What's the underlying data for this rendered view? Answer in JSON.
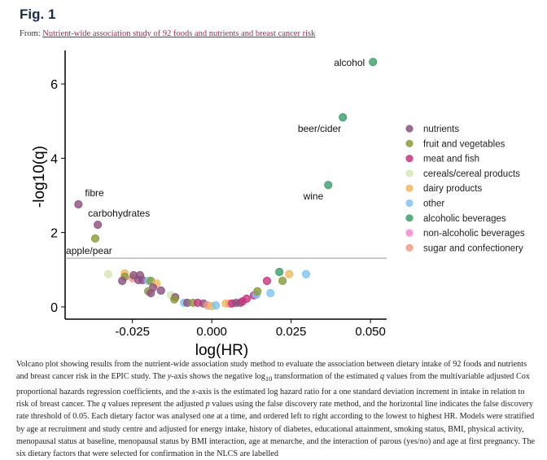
{
  "figure": {
    "title": "Fig. 1",
    "from_label": "From:",
    "source_link": "Nutrient-wide association study of 92 foods and nutrients and breast cancer risk"
  },
  "caption": [
    {
      "t": "Volcano plot showing results from the nutrient-wide association study method to evaluate the association between dietary intake of 92 foods and nutrients and breast cancer risk in the EPIC study. The "
    },
    {
      "t": "y",
      "s": "i"
    },
    {
      "t": "-axis shows the negative log"
    },
    {
      "t": "10",
      "s": "sub"
    },
    {
      "t": " transformation of the estimated "
    },
    {
      "t": "q",
      "s": "i"
    },
    {
      "t": " values from the multivariable adjusted Cox proportional hazards regression coefficients, and the "
    },
    {
      "t": "x",
      "s": "i"
    },
    {
      "t": "-axis is the estimated log hazard ratio for a one standard deviation increment in intake in relation to risk of breast cancer. The "
    },
    {
      "t": "q",
      "s": "i"
    },
    {
      "t": " values represent the adjusted "
    },
    {
      "t": "p",
      "s": "i"
    },
    {
      "t": " values using the false discovery rate method, and the horizontal line indicates the false discovery rate threshold of 0.05. Each dietary factor was analysed one at a time, and ordered left to right according to the lowest to highest HR. Models were stratified by age at recruitment and study centre and adjusted for energy intake, history of diabetes, educational attainment, smoking status, BMI, physical activity, menopausal status at baseline, menopausal status by BMI interaction, age at menarche, and the interaction of parous (yes/no) and age at first pregnancy. The six dietary factors that were selected for confirmation in the NLCS are labelled"
    }
  ],
  "chart_data": {
    "type": "scatter",
    "xlabel": "log(HR)",
    "ylabel": "-log10(q)",
    "xlim": [
      -0.0462,
      0.0551
    ],
    "ylim": [
      -0.33,
      6.9
    ],
    "xticks": [
      -0.025,
      0.0,
      0.025,
      0.05
    ],
    "xtick_labels": [
      "-0.025",
      "0.000",
      "0.025",
      "0.050"
    ],
    "yticks": [
      0,
      2,
      4,
      6
    ],
    "ytick_labels": [
      "0",
      "2",
      "4",
      "6"
    ],
    "threshold_line": 1.31,
    "grid": false,
    "legend_position": "right",
    "categories": [
      {
        "name": "nutrients",
        "color": "#8b4f80"
      },
      {
        "name": "fruit and vegetables",
        "color": "#8a9a3a"
      },
      {
        "name": "meat and fish",
        "color": "#c8347f"
      },
      {
        "name": "cereals/cereal products",
        "color": "#d5e6b5"
      },
      {
        "name": "dairy products",
        "color": "#f0b95e"
      },
      {
        "name": "other",
        "color": "#7ec3ef"
      },
      {
        "name": "alcoholic beverages",
        "color": "#3a9e6a"
      },
      {
        "name": "non-alcoholic beverages",
        "color": "#f28ad0"
      },
      {
        "name": "sugar and confectionery",
        "color": "#f29a85"
      }
    ],
    "points": [
      {
        "x": 0.0508,
        "y": 6.59,
        "c": 6,
        "label": "alcohol"
      },
      {
        "x": 0.0413,
        "y": 5.1,
        "c": 6,
        "label": "beer/cider"
      },
      {
        "x": 0.0367,
        "y": 3.28,
        "c": 6,
        "label": "wine"
      },
      {
        "x": -0.042,
        "y": 2.76,
        "c": 0,
        "label": "fibre"
      },
      {
        "x": -0.0359,
        "y": 2.21,
        "c": 0,
        "label": "carbohydrates"
      },
      {
        "x": -0.0367,
        "y": 1.84,
        "c": 1,
        "label": "apple/pear"
      },
      {
        "x": -0.0326,
        "y": 0.88,
        "c": 3
      },
      {
        "x": -0.0274,
        "y": 0.9,
        "c": 4
      },
      {
        "x": -0.0274,
        "y": 0.81,
        "c": 1
      },
      {
        "x": -0.0282,
        "y": 0.7,
        "c": 0
      },
      {
        "x": -0.0249,
        "y": 0.77,
        "c": 8
      },
      {
        "x": -0.0246,
        "y": 0.85,
        "c": 0
      },
      {
        "x": -0.0226,
        "y": 0.85,
        "c": 0
      },
      {
        "x": -0.0231,
        "y": 0.72,
        "c": 0
      },
      {
        "x": -0.0218,
        "y": 0.72,
        "c": 0
      },
      {
        "x": -0.02,
        "y": 0.7,
        "c": 5
      },
      {
        "x": -0.0192,
        "y": 0.7,
        "c": 1
      },
      {
        "x": -0.0174,
        "y": 0.63,
        "c": 4
      },
      {
        "x": -0.0185,
        "y": 0.52,
        "c": 0
      },
      {
        "x": -0.02,
        "y": 0.42,
        "c": 1
      },
      {
        "x": -0.0192,
        "y": 0.37,
        "c": 0
      },
      {
        "x": -0.016,
        "y": 0.44,
        "c": 0
      },
      {
        "x": -0.0128,
        "y": 0.31,
        "c": 3
      },
      {
        "x": -0.0115,
        "y": 0.26,
        "c": 0
      },
      {
        "x": -0.0118,
        "y": 0.2,
        "c": 1
      },
      {
        "x": -0.0087,
        "y": 0.11,
        "c": 5
      },
      {
        "x": -0.0077,
        "y": 0.11,
        "c": 0
      },
      {
        "x": -0.0059,
        "y": 0.11,
        "c": 1
      },
      {
        "x": -0.0044,
        "y": 0.11,
        "c": 2
      },
      {
        "x": -0.0026,
        "y": 0.09,
        "c": 0
      },
      {
        "x": -0.0013,
        "y": 0.04,
        "c": 8
      },
      {
        "x": 0.0,
        "y": 0.02,
        "c": 4
      },
      {
        "x": 0.0013,
        "y": 0.04,
        "c": 5
      },
      {
        "x": 0.0044,
        "y": 0.09,
        "c": 4
      },
      {
        "x": 0.0056,
        "y": 0.09,
        "c": 8
      },
      {
        "x": 0.0064,
        "y": 0.09,
        "c": 2
      },
      {
        "x": 0.0077,
        "y": 0.11,
        "c": 0
      },
      {
        "x": 0.009,
        "y": 0.11,
        "c": 0
      },
      {
        "x": 0.0097,
        "y": 0.15,
        "c": 2
      },
      {
        "x": 0.011,
        "y": 0.22,
        "c": 2
      },
      {
        "x": 0.0133,
        "y": 0.31,
        "c": 2
      },
      {
        "x": 0.0141,
        "y": 0.33,
        "c": 5
      },
      {
        "x": 0.0144,
        "y": 0.42,
        "c": 1
      },
      {
        "x": 0.0185,
        "y": 0.37,
        "c": 5
      },
      {
        "x": 0.0174,
        "y": 0.7,
        "c": 2
      },
      {
        "x": 0.0223,
        "y": 0.7,
        "c": 1
      },
      {
        "x": 0.0213,
        "y": 0.94,
        "c": 6
      },
      {
        "x": 0.0244,
        "y": 0.88,
        "c": 4
      },
      {
        "x": 0.0297,
        "y": 0.88,
        "c": 5
      }
    ]
  }
}
